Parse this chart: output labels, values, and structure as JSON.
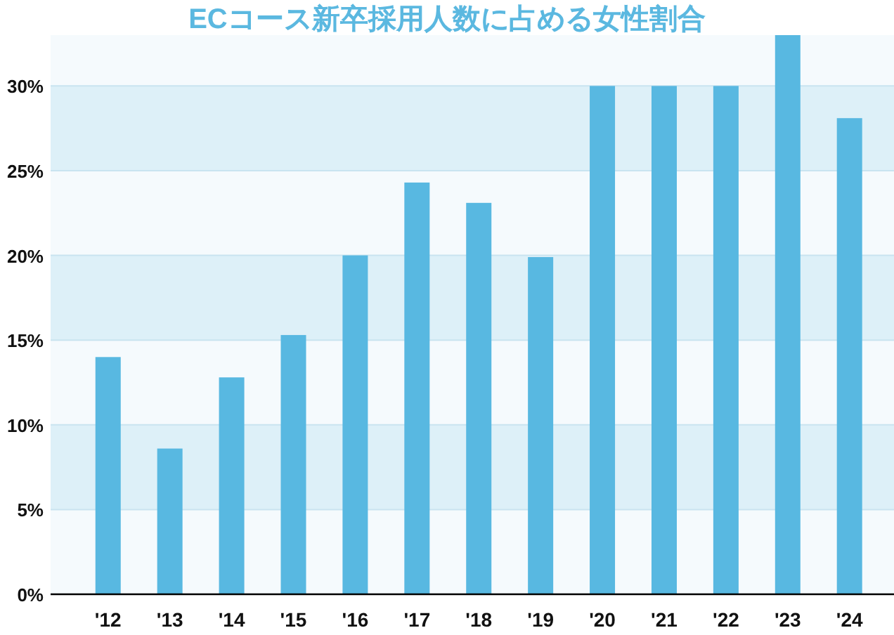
{
  "chart_data": {
    "type": "bar",
    "title": "ECコース新卒採用人数に占める女性割合",
    "categories": [
      "'12",
      "'13",
      "'14",
      "'15",
      "'16",
      "'17",
      "'18",
      "'19",
      "'20",
      "'21",
      "'22",
      "'23",
      "'24"
    ],
    "values": [
      14,
      8.6,
      12.8,
      15.3,
      20,
      24.3,
      23.1,
      19.9,
      30,
      30,
      30,
      33,
      28.1
    ],
    "color": "#58b8e1",
    "ylim": [
      0,
      33
    ],
    "yticks": [
      {
        "value": 0,
        "label": "0%"
      },
      {
        "value": 5,
        "label": "5%"
      },
      {
        "value": 10,
        "label": "10%"
      },
      {
        "value": 15,
        "label": "15%"
      },
      {
        "value": 20,
        "label": "20%"
      },
      {
        "value": 25,
        "label": "25%"
      },
      {
        "value": 30,
        "label": "30%"
      }
    ],
    "grid": "y"
  }
}
